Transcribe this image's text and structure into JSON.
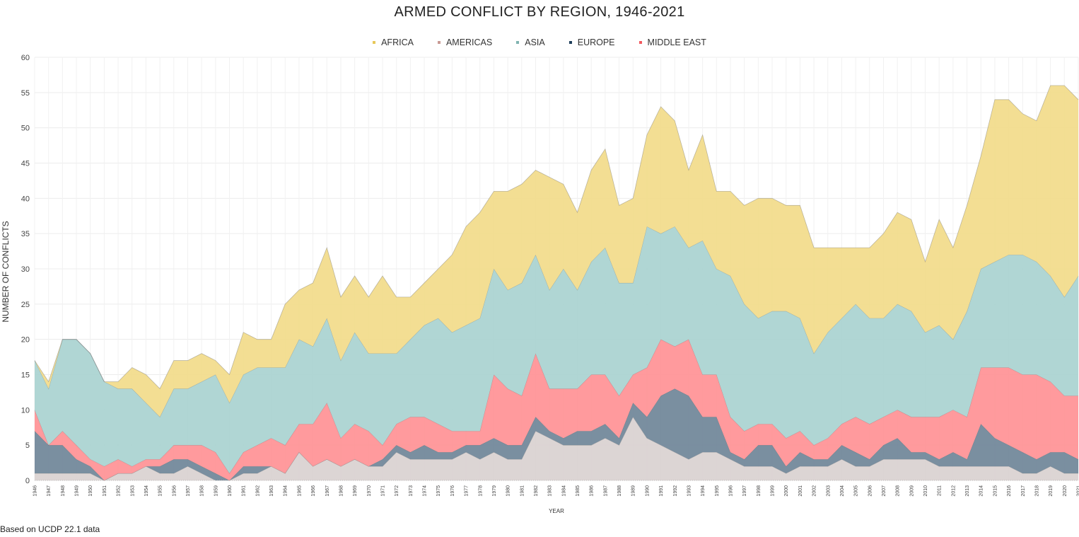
{
  "chart_data": {
    "type": "area",
    "stacked": true,
    "title": "ARMED CONFLICT BY REGION, 1946-2021",
    "xlabel": "YEAR",
    "ylabel": "NUMBER OF CONFLICTS",
    "ylim": [
      0,
      60
    ],
    "yticks": [
      0,
      5,
      10,
      15,
      20,
      25,
      30,
      35,
      40,
      45,
      50,
      55,
      60
    ],
    "grid": true,
    "legend_position": "top-center",
    "x": [
      1946,
      1947,
      1948,
      1949,
      1950,
      1951,
      1952,
      1953,
      1954,
      1955,
      1956,
      1957,
      1958,
      1959,
      1960,
      1961,
      1962,
      1963,
      1964,
      1965,
      1966,
      1967,
      1968,
      1969,
      1970,
      1971,
      1972,
      1973,
      1974,
      1975,
      1976,
      1977,
      1978,
      1979,
      1980,
      1981,
      1982,
      1983,
      1984,
      1985,
      1986,
      1987,
      1988,
      1989,
      1990,
      1991,
      1992,
      1993,
      1994,
      1995,
      1996,
      1997,
      1998,
      1999,
      2000,
      2001,
      2002,
      2003,
      2004,
      2005,
      2006,
      2007,
      2008,
      2009,
      2010,
      2011,
      2012,
      2013,
      2014,
      2015,
      2016,
      2017,
      2018,
      2019,
      2020,
      2021
    ],
    "series": [
      {
        "name": "AMERICAS",
        "color": "#d9d1d0",
        "values": [
          1,
          1,
          1,
          1,
          1,
          0,
          1,
          1,
          2,
          1,
          1,
          2,
          1,
          0,
          0,
          1,
          1,
          2,
          1,
          4,
          2,
          3,
          2,
          3,
          2,
          2,
          4,
          3,
          3,
          3,
          3,
          4,
          3,
          4,
          3,
          3,
          7,
          6,
          5,
          5,
          5,
          6,
          5,
          9,
          6,
          5,
          4,
          3,
          4,
          4,
          3,
          2,
          2,
          2,
          1,
          2,
          2,
          2,
          3,
          2,
          2,
          3,
          3,
          3,
          3,
          2,
          2,
          2,
          2,
          2,
          2,
          1,
          1,
          2,
          1,
          1
        ]
      },
      {
        "name": "EUROPE",
        "color": "#6f8598",
        "values": [
          6,
          4,
          4,
          2,
          1,
          0,
          0,
          0,
          0,
          1,
          2,
          1,
          1,
          1,
          0,
          1,
          1,
          0,
          0,
          0,
          0,
          0,
          0,
          0,
          0,
          1,
          1,
          1,
          2,
          1,
          1,
          1,
          2,
          2,
          2,
          2,
          2,
          1,
          1,
          2,
          2,
          2,
          1,
          2,
          3,
          7,
          9,
          9,
          5,
          5,
          1,
          1,
          3,
          3,
          1,
          2,
          1,
          1,
          2,
          2,
          1,
          2,
          3,
          1,
          1,
          1,
          2,
          1,
          6,
          4,
          3,
          3,
          2,
          2,
          3,
          2
        ]
      },
      {
        "name": "MIDDLE EAST",
        "color": "#ff9195",
        "values": [
          3,
          0,
          2,
          2,
          1,
          2,
          2,
          1,
          1,
          1,
          2,
          2,
          3,
          3,
          1,
          2,
          3,
          4,
          4,
          4,
          6,
          8,
          4,
          5,
          5,
          2,
          3,
          5,
          4,
          4,
          3,
          2,
          2,
          9,
          8,
          7,
          9,
          6,
          7,
          6,
          8,
          7,
          6,
          4,
          7,
          8,
          6,
          8,
          6,
          6,
          5,
          4,
          3,
          3,
          4,
          3,
          2,
          3,
          3,
          5,
          5,
          4,
          4,
          5,
          5,
          6,
          6,
          6,
          8,
          10,
          11,
          11,
          12,
          10,
          8,
          9
        ]
      },
      {
        "name": "ASIA",
        "color": "#a9d3d0",
        "values": [
          7,
          8,
          13,
          15,
          15,
          12,
          10,
          11,
          8,
          6,
          8,
          8,
          9,
          11,
          10,
          11,
          11,
          10,
          11,
          12,
          11,
          12,
          11,
          13,
          11,
          13,
          10,
          11,
          13,
          15,
          14,
          15,
          16,
          15,
          14,
          16,
          14,
          14,
          17,
          14,
          16,
          18,
          16,
          13,
          20,
          15,
          17,
          13,
          19,
          15,
          20,
          18,
          15,
          16,
          18,
          16,
          13,
          15,
          15,
          16,
          15,
          14,
          15,
          15,
          12,
          13,
          10,
          15,
          14,
          15,
          16,
          17,
          16,
          15,
          14,
          17
        ]
      },
      {
        "name": "AFRICA",
        "color": "#f2db8a",
        "values": [
          0,
          1,
          0,
          0,
          0,
          0,
          1,
          3,
          4,
          4,
          4,
          4,
          4,
          2,
          4,
          6,
          4,
          4,
          9,
          7,
          9,
          10,
          9,
          8,
          8,
          11,
          8,
          6,
          6,
          7,
          11,
          14,
          15,
          11,
          14,
          14,
          12,
          16,
          12,
          11,
          13,
          14,
          11,
          12,
          13,
          18,
          15,
          11,
          15,
          11,
          12,
          14,
          17,
          16,
          15,
          16,
          15,
          12,
          10,
          8,
          10,
          12,
          13,
          13,
          10,
          15,
          13,
          15,
          16,
          23,
          22,
          20,
          20,
          27,
          30,
          25
        ]
      }
    ]
  },
  "source_note": "Based on UCDP 22.1 data"
}
